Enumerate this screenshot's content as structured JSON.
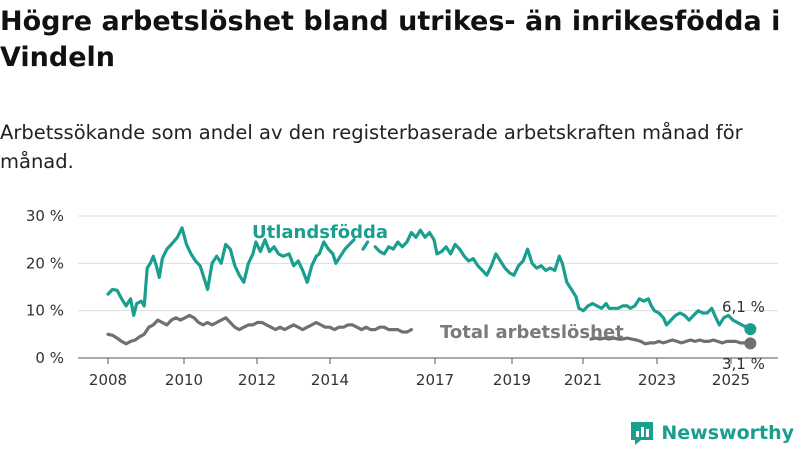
{
  "title": "Högre arbetslöshet bland utrikes- än inrikesfödda i Vindeln",
  "subtitle": "Arbetssökande som andel av den registerbaserade arbetskraften månad för månad.",
  "brand": {
    "name": "Newsworthy",
    "icon": "newsworthy-logo-icon"
  },
  "colors": {
    "foreign": "#1a9e8f",
    "total": "#707070",
    "grid": "#dddddd"
  },
  "chart_data": {
    "type": "line",
    "x_ticks": [
      "2008",
      "2010",
      "2012",
      "2014",
      "2017",
      "2019",
      "2021",
      "2023",
      "2025"
    ],
    "y_ticks": [
      "0 %",
      "10 %",
      "20 %",
      "30 %"
    ],
    "ylim": [
      0,
      30
    ],
    "grid": "horizontal",
    "series": [
      {
        "name": "Utlandsfödda",
        "end_label": "6,1 %",
        "segments": [
          [
            [
              2008.0,
              13.5
            ],
            [
              2008.15,
              14.5
            ],
            [
              2008.3,
              14.3
            ],
            [
              2008.45,
              12.5
            ],
            [
              2008.6,
              11.0
            ],
            [
              2008.75,
              12.5
            ],
            [
              2008.85,
              9.0
            ],
            [
              2008.95,
              11.5
            ],
            [
              2009.1,
              12.0
            ],
            [
              2009.2,
              11.0
            ],
            [
              2009.3,
              19.0
            ],
            [
              2009.4,
              20.0
            ],
            [
              2009.5,
              21.5
            ],
            [
              2009.6,
              19.5
            ],
            [
              2009.7,
              17.0
            ],
            [
              2009.8,
              21.0
            ],
            [
              2009.95,
              23.0
            ],
            [
              2010.1,
              24.0
            ],
            [
              2010.3,
              25.5
            ],
            [
              2010.45,
              27.5
            ],
            [
              2010.6,
              24.0
            ],
            [
              2010.75,
              22.0
            ],
            [
              2010.9,
              20.5
            ],
            [
              2011.05,
              19.5
            ],
            [
              2011.2,
              16.5
            ],
            [
              2011.3,
              14.5
            ],
            [
              2011.45,
              20.0
            ],
            [
              2011.6,
              21.5
            ],
            [
              2011.75,
              20.0
            ],
            [
              2011.9,
              24.0
            ],
            [
              2012.05,
              23.0
            ],
            [
              2012.2,
              19.5
            ],
            [
              2012.35,
              17.5
            ],
            [
              2012.5,
              16.0
            ],
            [
              2012.65,
              20.0
            ],
            [
              2012.8,
              22.0
            ],
            [
              2012.9,
              24.5
            ],
            [
              2013.05,
              22.5
            ],
            [
              2013.2,
              25.0
            ],
            [
              2013.35,
              22.5
            ],
            [
              2013.5,
              23.5
            ],
            [
              2013.65,
              22.0
            ],
            [
              2013.8,
              21.5
            ],
            [
              2014.0,
              22.0
            ],
            [
              2014.15,
              19.5
            ],
            [
              2014.3,
              20.5
            ],
            [
              2014.45,
              18.5
            ],
            [
              2014.6,
              16.0
            ],
            [
              2014.75,
              19.5
            ],
            [
              2014.9,
              21.5
            ],
            [
              2015.0,
              22.0
            ],
            [
              2015.15,
              24.5
            ],
            [
              2015.3,
              23.0
            ],
            [
              2015.45,
              22.0
            ],
            [
              2015.55,
              20.0
            ],
            [
              2015.7,
              21.5
            ],
            [
              2015.85,
              23.0
            ],
            [
              2016.0,
              24.0
            ],
            [
              2016.15,
              25.0
            ]
          ],
          [
            [
              2016.45,
              23.0
            ],
            [
              2016.6,
              24.5
            ]
          ],
          [
            [
              2016.85,
              23.5
            ],
            [
              2017.0,
              22.5
            ],
            [
              2017.15,
              22.0
            ],
            [
              2017.3,
              23.5
            ],
            [
              2017.45,
              23.0
            ],
            [
              2017.6,
              24.5
            ],
            [
              2017.75,
              23.5
            ],
            [
              2017.9,
              24.5
            ],
            [
              2018.05,
              26.5
            ],
            [
              2018.2,
              25.5
            ],
            [
              2018.35,
              27.0
            ],
            [
              2018.5,
              25.5
            ],
            [
              2018.65,
              26.5
            ],
            [
              2018.8,
              25.0
            ],
            [
              2018.9,
              22.0
            ],
            [
              2019.05,
              22.5
            ],
            [
              2019.2,
              23.5
            ],
            [
              2019.35,
              22.0
            ],
            [
              2019.5,
              24.0
            ],
            [
              2019.65,
              23.0
            ],
            [
              2019.8,
              21.5
            ],
            [
              2019.95,
              20.5
            ],
            [
              2020.1,
              21.0
            ],
            [
              2020.25,
              19.5
            ],
            [
              2020.4,
              18.5
            ],
            [
              2020.55,
              17.5
            ],
            [
              2020.7,
              19.5
            ],
            [
              2020.85,
              22.0
            ],
            [
              2021.0,
              20.5
            ],
            [
              2021.15,
              19.0
            ],
            [
              2021.3,
              18.0
            ],
            [
              2021.45,
              17.5
            ],
            [
              2021.6,
              19.5
            ],
            [
              2021.75,
              20.5
            ],
            [
              2021.9,
              23.0
            ],
            [
              2022.05,
              20.0
            ],
            [
              2022.2,
              19.0
            ],
            [
              2022.35,
              19.5
            ],
            [
              2022.5,
              18.5
            ],
            [
              2022.65,
              19.0
            ],
            [
              2022.8,
              18.5
            ],
            [
              2022.95,
              21.5
            ],
            [
              2023.05,
              20.0
            ],
            [
              2023.2,
              16.0
            ],
            [
              2023.35,
              14.5
            ],
            [
              2023.5,
              13.0
            ],
            [
              2023.6,
              10.5
            ],
            [
              2023.75,
              10.0
            ],
            [
              2023.9,
              11.0
            ],
            [
              2024.05,
              11.5
            ],
            [
              2024.2,
              11.0
            ],
            [
              2024.35,
              10.5
            ],
            [
              2024.5,
              11.5
            ],
            [
              2024.6,
              10.5
            ],
            [
              2024.75,
              10.5
            ],
            [
              2024.9,
              10.5
            ],
            [
              2025.05,
              11.0
            ],
            [
              2025.2,
              11.0
            ],
            [
              2025.3,
              10.5
            ],
            [
              2025.45,
              11.0
            ],
            [
              2025.6,
              12.5
            ],
            [
              2025.75,
              12.0
            ],
            [
              2025.9,
              12.5
            ],
            [
              2026.0,
              11.0
            ],
            [
              2026.1,
              10.0
            ],
            [
              2026.25,
              9.5
            ],
            [
              2026.4,
              8.5
            ],
            [
              2026.5,
              7.0
            ],
            [
              2026.65,
              8.0
            ],
            [
              2026.8,
              9.0
            ],
            [
              2026.95,
              9.5
            ],
            [
              2027.1,
              9.0
            ],
            [
              2027.25,
              8.0
            ],
            [
              2027.4,
              9.0
            ],
            [
              2027.55,
              10.0
            ],
            [
              2027.7,
              9.5
            ],
            [
              2027.85,
              9.5
            ],
            [
              2028.0,
              10.5
            ],
            [
              2028.1,
              9.0
            ],
            [
              2028.25,
              7.0
            ],
            [
              2028.4,
              8.5
            ],
            [
              2028.55,
              9.0
            ],
            [
              2028.7,
              8.0
            ],
            [
              2028.85,
              7.5
            ],
            [
              2029.0,
              7.0
            ],
            [
              2029.15,
              6.5
            ],
            [
              2029.28,
              6.1
            ]
          ]
        ]
      },
      {
        "name": "Total arbetslöshet",
        "end_label": "3,1 %",
        "segments": [
          [
            [
              2008.0,
              5.0
            ],
            [
              2008.15,
              4.8
            ],
            [
              2008.3,
              4.2
            ],
            [
              2008.45,
              3.5
            ],
            [
              2008.6,
              3.0
            ],
            [
              2008.75,
              3.5
            ],
            [
              2008.9,
              3.8
            ],
            [
              2009.05,
              4.5
            ],
            [
              2009.2,
              5.0
            ],
            [
              2009.35,
              6.5
            ],
            [
              2009.5,
              7.0
            ],
            [
              2009.65,
              8.0
            ],
            [
              2009.8,
              7.5
            ],
            [
              2009.95,
              7.0
            ],
            [
              2010.1,
              8.0
            ],
            [
              2010.25,
              8.5
            ],
            [
              2010.4,
              8.0
            ],
            [
              2010.55,
              8.5
            ],
            [
              2010.7,
              9.0
            ],
            [
              2010.85,
              8.5
            ],
            [
              2011.0,
              7.5
            ],
            [
              2011.15,
              7.0
            ],
            [
              2011.3,
              7.5
            ],
            [
              2011.45,
              7.0
            ],
            [
              2011.6,
              7.5
            ],
            [
              2011.75,
              8.0
            ],
            [
              2011.9,
              8.5
            ],
            [
              2012.05,
              7.5
            ],
            [
              2012.2,
              6.5
            ],
            [
              2012.35,
              6.0
            ],
            [
              2012.5,
              6.5
            ],
            [
              2012.65,
              7.0
            ],
            [
              2012.8,
              7.0
            ],
            [
              2012.95,
              7.5
            ],
            [
              2013.1,
              7.5
            ],
            [
              2013.25,
              7.0
            ],
            [
              2013.4,
              6.5
            ],
            [
              2013.55,
              6.0
            ],
            [
              2013.7,
              6.5
            ],
            [
              2013.85,
              6.0
            ],
            [
              2014.0,
              6.5
            ],
            [
              2014.15,
              7.0
            ],
            [
              2014.3,
              6.5
            ],
            [
              2014.45,
              6.0
            ],
            [
              2014.6,
              6.5
            ],
            [
              2014.75,
              7.0
            ],
            [
              2014.9,
              7.5
            ],
            [
              2015.05,
              7.0
            ],
            [
              2015.2,
              6.5
            ],
            [
              2015.35,
              6.5
            ],
            [
              2015.5,
              6.0
            ],
            [
              2015.65,
              6.5
            ],
            [
              2015.8,
              6.5
            ],
            [
              2015.95,
              7.0
            ],
            [
              2016.1,
              7.0
            ],
            [
              2016.25,
              6.5
            ],
            [
              2016.4,
              6.0
            ],
            [
              2016.55,
              6.5
            ],
            [
              2016.7,
              6.0
            ],
            [
              2016.85,
              6.0
            ],
            [
              2017.0,
              6.5
            ],
            [
              2017.15,
              6.5
            ],
            [
              2017.3,
              6.0
            ],
            [
              2017.45,
              6.0
            ],
            [
              2017.6,
              6.0
            ],
            [
              2017.75,
              5.5
            ],
            [
              2017.9,
              5.5
            ],
            [
              2018.05,
              6.0
            ]
          ],
          [
            [
              2024.0,
              4.0
            ],
            [
              2024.15,
              4.2
            ],
            [
              2024.3,
              4.0
            ],
            [
              2024.45,
              4.2
            ],
            [
              2024.6,
              4.0
            ],
            [
              2024.75,
              4.2
            ],
            [
              2024.9,
              4.0
            ],
            [
              2025.05,
              4.0
            ],
            [
              2025.2,
              4.2
            ],
            [
              2025.35,
              4.0
            ],
            [
              2025.5,
              3.8
            ],
            [
              2025.65,
              3.5
            ],
            [
              2025.8,
              3.0
            ],
            [
              2025.95,
              3.2
            ],
            [
              2026.1,
              3.2
            ],
            [
              2026.25,
              3.5
            ],
            [
              2026.4,
              3.2
            ],
            [
              2026.55,
              3.5
            ],
            [
              2026.7,
              3.8
            ],
            [
              2026.85,
              3.5
            ],
            [
              2027.0,
              3.2
            ],
            [
              2027.15,
              3.5
            ],
            [
              2027.3,
              3.8
            ],
            [
              2027.45,
              3.5
            ],
            [
              2027.6,
              3.8
            ],
            [
              2027.75,
              3.5
            ],
            [
              2027.9,
              3.5
            ],
            [
              2028.05,
              3.8
            ],
            [
              2028.2,
              3.5
            ],
            [
              2028.35,
              3.2
            ],
            [
              2028.5,
              3.5
            ],
            [
              2028.65,
              3.5
            ],
            [
              2028.8,
              3.5
            ],
            [
              2028.95,
              3.2
            ],
            [
              2029.1,
              3.2
            ],
            [
              2029.28,
              3.1
            ]
          ]
        ]
      }
    ]
  }
}
